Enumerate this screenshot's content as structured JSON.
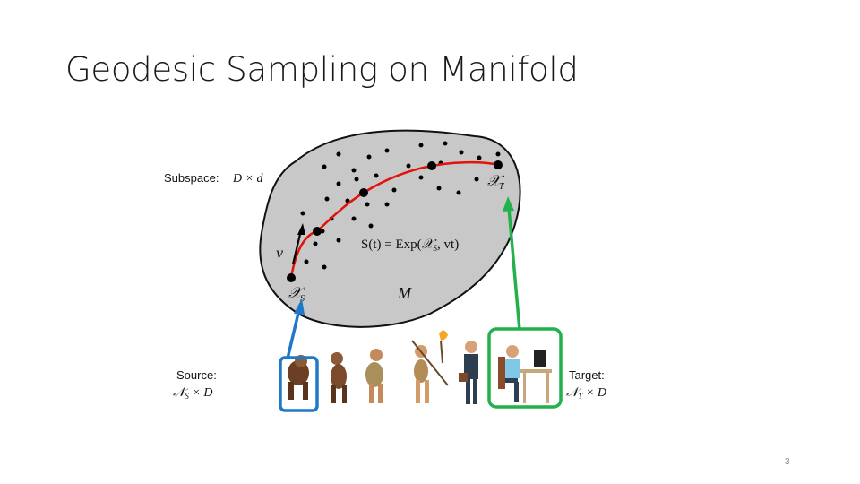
{
  "slide": {
    "title": "Geodesic Sampling on Manifold",
    "page_number": "3"
  },
  "diagram": {
    "subspace_label": "Subspace:",
    "subspace_dim": "D × d",
    "manifold_label": "M",
    "velocity_label": "v",
    "source_point_label": "𝒳",
    "source_point_sub": "S",
    "target_point_label": "𝒳",
    "target_point_sub": "T",
    "geodesic_eq_lhs": "S(t) = Exp(",
    "geodesic_eq_x": "𝒳",
    "geodesic_eq_sub": "S",
    "geodesic_eq_rhs": ", vt)",
    "source_label": "Source:",
    "source_dim": "𝒩",
    "source_dim_sub": "S",
    "source_dim_rest": " × D",
    "target_label": "Target:",
    "target_dim": "𝒩",
    "target_dim_sub": "T",
    "target_dim_rest": " × D",
    "colors": {
      "manifold_fill": "#c8c8c8",
      "geodesic": "#e3120b",
      "source_box": "#1f78c8",
      "target_box": "#22b14c"
    },
    "icons": [
      "ape-icon",
      "early-hominid-icon",
      "caveman-icon",
      "caveman-torch-icon",
      "businessman-icon",
      "office-worker-icon"
    ]
  }
}
